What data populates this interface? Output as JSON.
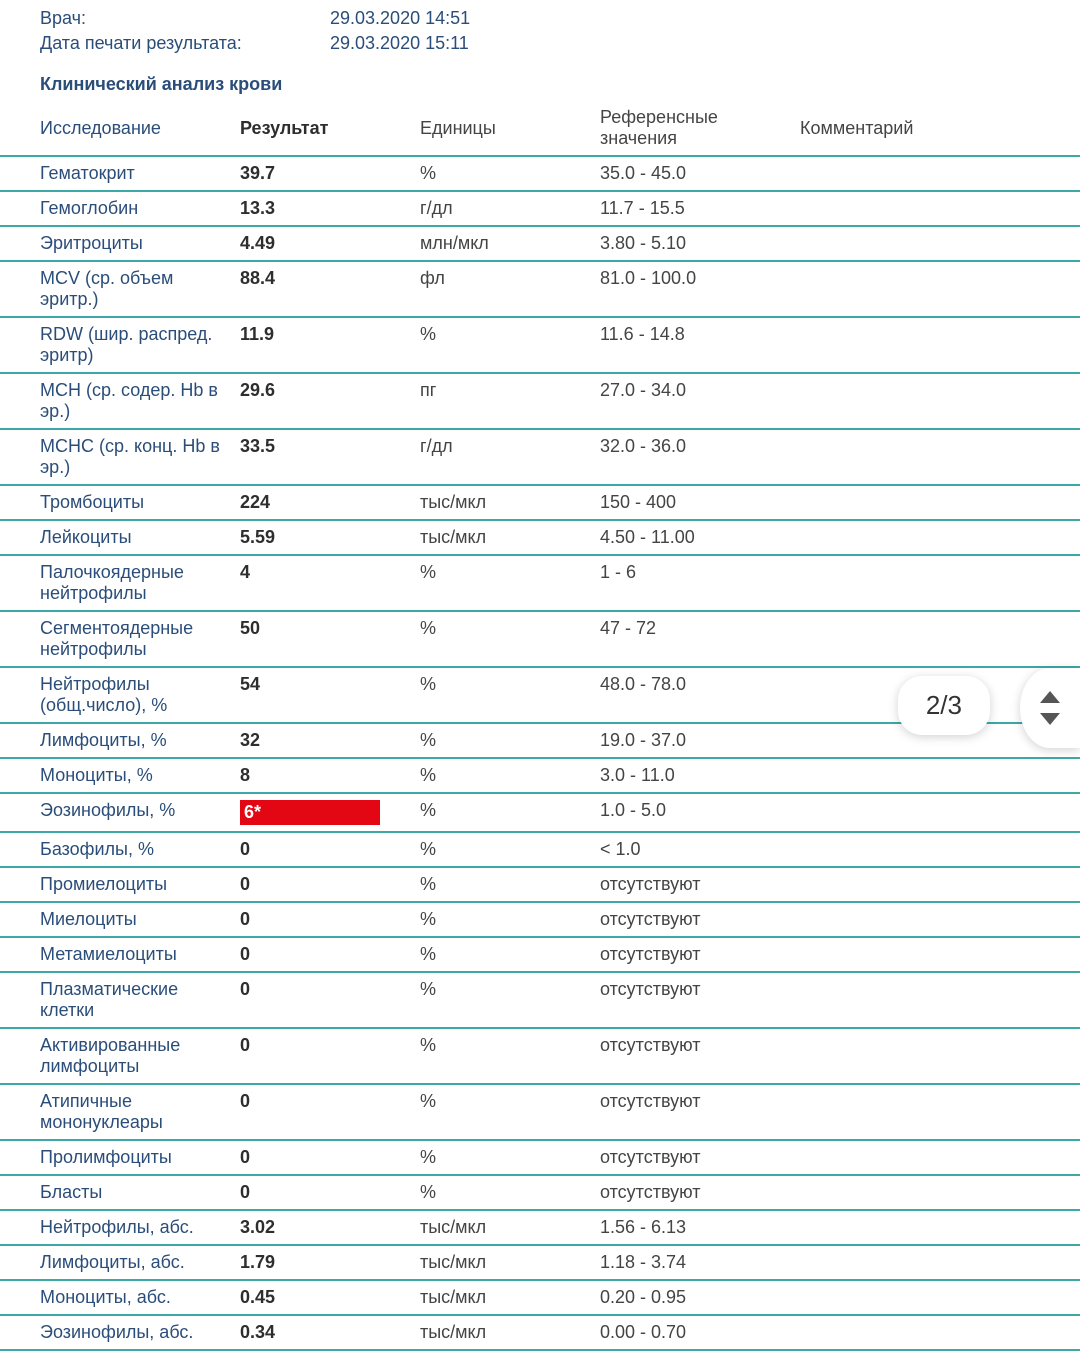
{
  "header": {
    "doctor_label": "Врач:",
    "doctor_value": "29.03.2020 14:51",
    "print_label": "Дата печати результата:",
    "print_value": "29.03.2020 15:11"
  },
  "section_title": "Клинический анализ крови",
  "columns": {
    "test": "Исследование",
    "result": "Результат",
    "units": "Единицы",
    "reference": "Референсные значения",
    "comment": "Комментарий"
  },
  "rows": [
    {
      "test": "Гематокрит",
      "result": "39.7",
      "units": "%",
      "ref": "35.0 - 45.0",
      "flag": false
    },
    {
      "test": "Гемоглобин",
      "result": "13.3",
      "units": "г/дл",
      "ref": "11.7 - 15.5",
      "flag": false
    },
    {
      "test": "Эритроциты",
      "result": "4.49",
      "units": "млн/мкл",
      "ref": "3.80 - 5.10",
      "flag": false
    },
    {
      "test": "MCV (ср. объем эритр.)",
      "result": "88.4",
      "units": "фл",
      "ref": "81.0 - 100.0",
      "flag": false
    },
    {
      "test": "RDW (шир. распред. эритр)",
      "result": "11.9",
      "units": "%",
      "ref": "11.6 - 14.8",
      "flag": false
    },
    {
      "test": "MCH (ср. содер. Hb в эр.)",
      "result": "29.6",
      "units": "пг",
      "ref": "27.0 - 34.0",
      "flag": false
    },
    {
      "test": "MCHC (ср. конц. Hb в эр.)",
      "result": "33.5",
      "units": "г/дл",
      "ref": "32.0 - 36.0",
      "flag": false
    },
    {
      "test": "Тромбоциты",
      "result": "224",
      "units": "тыс/мкл",
      "ref": "150 - 400",
      "flag": false
    },
    {
      "test": "Лейкоциты",
      "result": "5.59",
      "units": "тыс/мкл",
      "ref": "4.50 - 11.00",
      "flag": false
    },
    {
      "test": "Палочкоядерные нейтрофилы",
      "result": "4",
      "units": "%",
      "ref": "1 - 6",
      "flag": false
    },
    {
      "test": "Сегментоядерные нейтрофилы",
      "result": "50",
      "units": "%",
      "ref": "47 - 72",
      "flag": false
    },
    {
      "test": "Нейтрофилы (общ.число), %",
      "result": "54",
      "units": "%",
      "ref": "48.0 - 78.0",
      "flag": false
    },
    {
      "test": "Лимфоциты, %",
      "result": "32",
      "units": "%",
      "ref": "19.0 - 37.0",
      "flag": false
    },
    {
      "test": "Моноциты, %",
      "result": "8",
      "units": "%",
      "ref": "3.0 - 11.0",
      "flag": false
    },
    {
      "test": "Эозинофилы, %",
      "result": "6*",
      "units": "%",
      "ref": "1.0 - 5.0",
      "flag": true
    },
    {
      "test": "Базофилы, %",
      "result": "0",
      "units": "%",
      "ref": "< 1.0",
      "flag": false
    },
    {
      "test": "Промиелоциты",
      "result": "0",
      "units": "%",
      "ref": "отсутствуют",
      "flag": false
    },
    {
      "test": "Миелоциты",
      "result": "0",
      "units": "%",
      "ref": "отсутствуют",
      "flag": false
    },
    {
      "test": "Метамиелоциты",
      "result": "0",
      "units": "%",
      "ref": "отсутствуют",
      "flag": false
    },
    {
      "test": "Плазматические клетки",
      "result": "0",
      "units": "%",
      "ref": "отсутствуют",
      "flag": false
    },
    {
      "test": "Активированные лимфоциты",
      "result": "0",
      "units": "%",
      "ref": "отсутствуют",
      "flag": false
    },
    {
      "test": "Атипичные мононуклеары",
      "result": "0",
      "units": "%",
      "ref": "отсутствуют",
      "flag": false
    },
    {
      "test": "Пролимфоциты",
      "result": "0",
      "units": "%",
      "ref": "отсутствуют",
      "flag": false
    },
    {
      "test": "Бласты",
      "result": "0",
      "units": "%",
      "ref": "отсутствуют",
      "flag": false
    },
    {
      "test": "Нейтрофилы, абс.",
      "result": "3.02",
      "units": "тыс/мкл",
      "ref": "1.56 - 6.13",
      "flag": false
    },
    {
      "test": "Лимфоциты, абс.",
      "result": "1.79",
      "units": "тыс/мкл",
      "ref": "1.18 - 3.74",
      "flag": false
    },
    {
      "test": "Моноциты, абс.",
      "result": "0.45",
      "units": "тыс/мкл",
      "ref": "0.20 - 0.95",
      "flag": false
    },
    {
      "test": "Эозинофилы, абс.",
      "result": "0.34",
      "units": "тыс/мкл",
      "ref": "0.00 - 0.70",
      "flag": false
    }
  ],
  "page_indicator": "2/3",
  "colors": {
    "text_primary": "#2a4d7a",
    "border": "#3ca9a6",
    "flag_bg": "#e30613",
    "flag_text": "#ffffff"
  }
}
